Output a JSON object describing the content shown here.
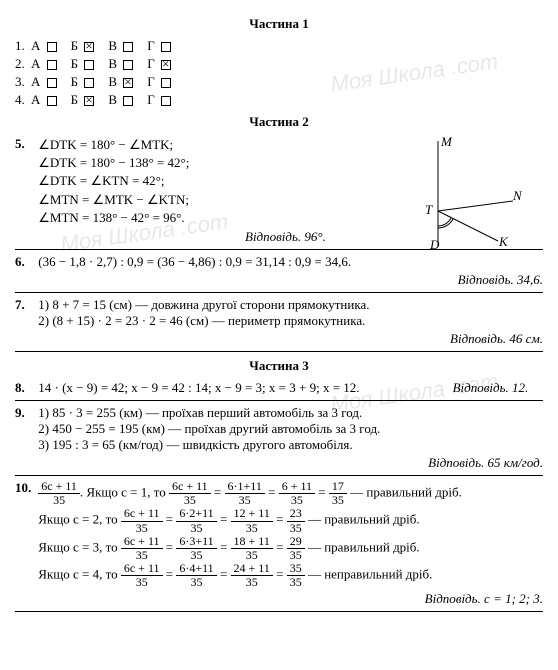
{
  "watermark": "Моя Школа .com",
  "part1": {
    "title": "Частина 1",
    "rows": [
      {
        "num": "1.",
        "opts": [
          "А",
          "Б",
          "В",
          "Г"
        ],
        "checked": 1
      },
      {
        "num": "2.",
        "opts": [
          "А",
          "Б",
          "В",
          "Г"
        ],
        "checked": 3
      },
      {
        "num": "3.",
        "opts": [
          "А",
          "Б",
          "В",
          "Г"
        ],
        "checked": 2
      },
      {
        "num": "4.",
        "opts": [
          "А",
          "Б",
          "В",
          "Г"
        ],
        "checked": 1
      }
    ]
  },
  "part2": {
    "title": "Частина 2",
    "p5": {
      "num": "5.",
      "lines": [
        "∠DTK = 180° − ∠MTK;",
        "∠DTK = 180° − 138° = 42°;",
        "∠DTK = ∠KTN = 42°;",
        "∠MTN = ∠MTK − ∠KTN;",
        "∠MTN = 138° − 42° = 96°."
      ],
      "answer": "Відповідь. 96°.",
      "diagram": {
        "M": "M",
        "N": "N",
        "T": "T",
        "K": "K",
        "D": "D"
      }
    },
    "p6": {
      "num": "6.",
      "body": "(36 − 1,8 · 2,7) : 0,9 = (36 − 4,86) : 0,9 = 31,14 : 0,9 = 34,6.",
      "answer": "Відповідь. 34,6."
    },
    "p7": {
      "num": "7.",
      "l1": "1) 8 + 7 = 15 (см) — довжина другої сторони прямокутника.",
      "l2": "2) (8 + 15) · 2 = 23 · 2 = 46 (см) — периметр прямокутника.",
      "answer": "Відповідь. 46 см."
    }
  },
  "part3": {
    "title": "Частина 3",
    "p8": {
      "num": "8.",
      "body": "14 · (x − 9) = 42; x − 9 = 42 : 14; x − 9 = 3; x = 3 + 9; x = 12.",
      "answer": "Відповідь. 12."
    },
    "p9": {
      "num": "9.",
      "l1": "1) 85 · 3 = 255 (км) — проїхав перший автомобіль за 3 год.",
      "l2": "2) 450 − 255 = 195 (км) — проїхав другий автомобіль за 3 год.",
      "l3": "3) 195 : 3 = 65 (км/год) — швидкість другого автомобіля.",
      "answer": "Відповідь. 65 км/год."
    },
    "p10": {
      "num": "10.",
      "frac_main": {
        "num": "6c + 11",
        "den": "35"
      },
      "intro": ". Якщо c = 1, то ",
      "cases": [
        {
          "pre": "",
          "c": "1",
          "n2": "6·1+11",
          "n3": "6 + 11",
          "n4": "17",
          "txt": " — правильний дріб."
        },
        {
          "pre": "Якщо c = 2, то ",
          "c": "2",
          "n2": "6·2+11",
          "n3": "12 + 11",
          "n4": "23",
          "txt": " — правильний дріб."
        },
        {
          "pre": "Якщо c = 3, то ",
          "c": "3",
          "n2": "6·3+11",
          "n3": "18 + 11",
          "n4": "29",
          "txt": " — правильний дріб."
        },
        {
          "pre": "Якщо c = 4, то ",
          "c": "4",
          "n2": "6·4+11",
          "n3": "24 + 11",
          "n4": "35",
          "txt": " — неправильний дріб."
        }
      ],
      "answer": "Відповідь. c = 1; 2; 3."
    }
  }
}
